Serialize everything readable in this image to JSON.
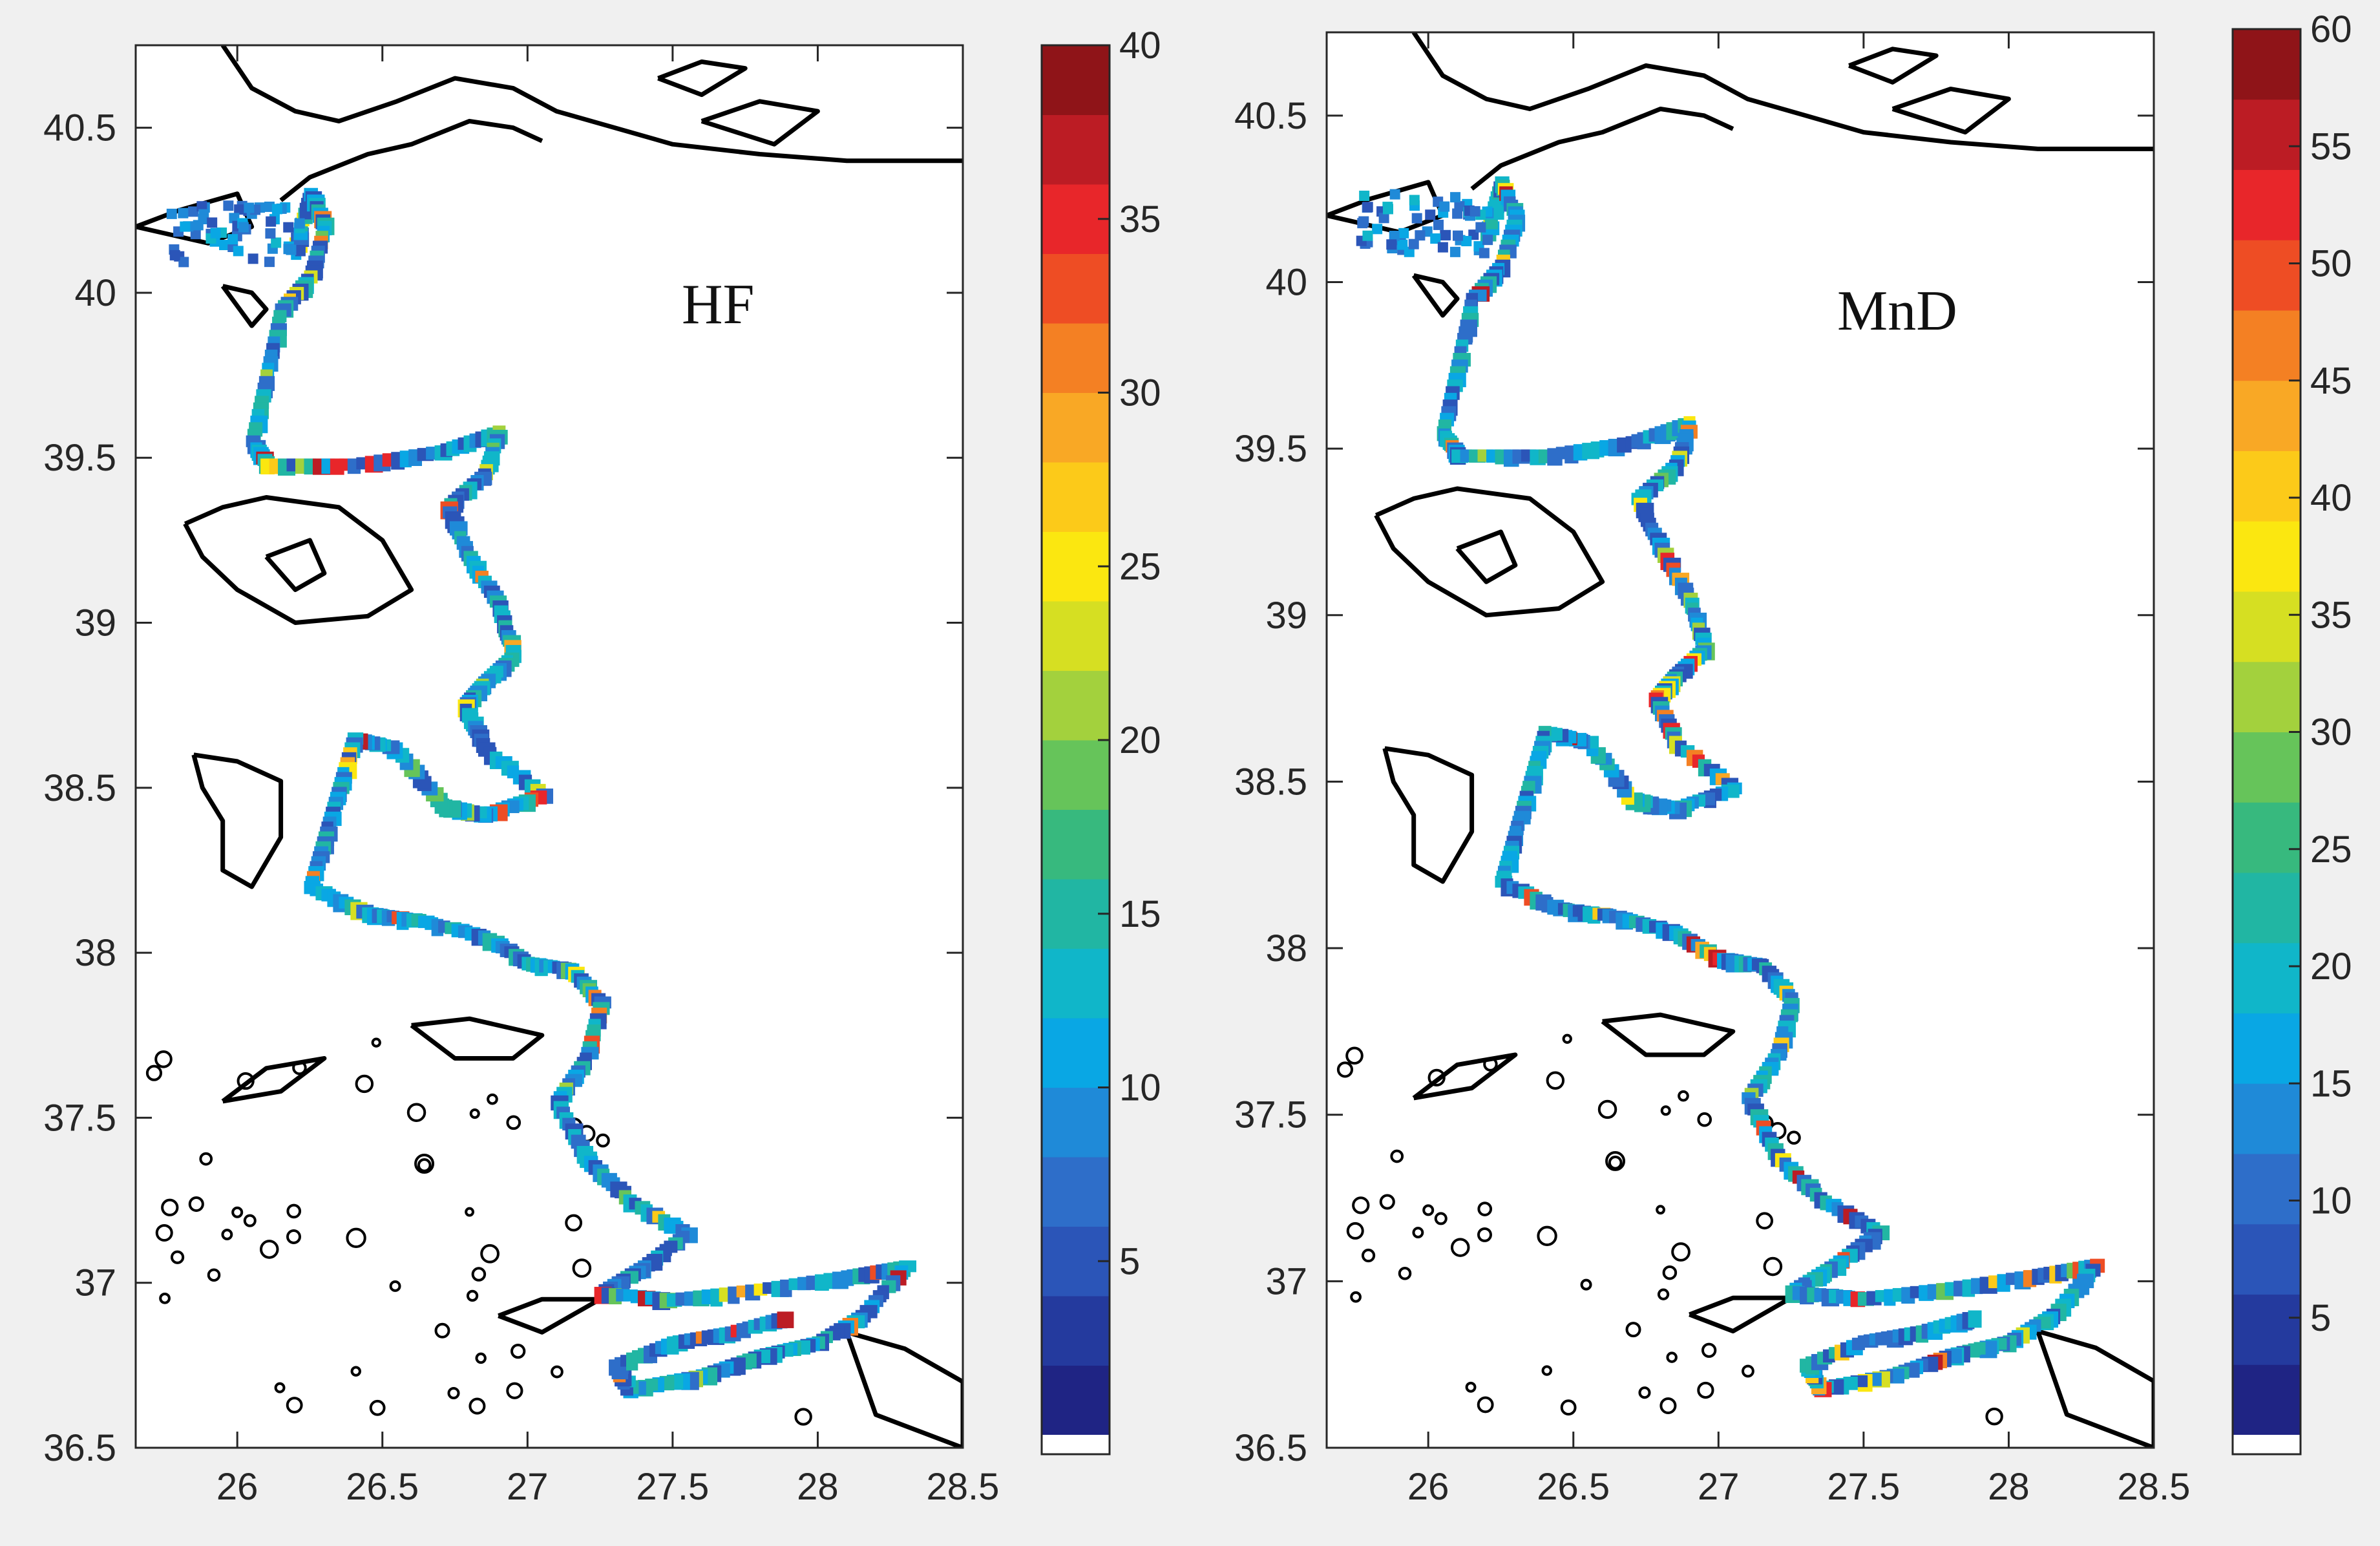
{
  "colormap": [
    "#1f2484",
    "#243a9e",
    "#2b55b8",
    "#2e6ec9",
    "#1f8ad8",
    "#09a7e4",
    "#10b6c9",
    "#21b6a3",
    "#37b97e",
    "#66c45a",
    "#a3d13d",
    "#d6df22",
    "#fbe710",
    "#fcca19",
    "#f9a825",
    "#f48023",
    "#ee4d24",
    "#e8262a",
    "#bc1c24",
    "#8f1418"
  ],
  "coastline_color": "#000000",
  "panels": [
    {
      "id": "hf",
      "label": "HF",
      "xlim": [
        25.65,
        28.5
      ],
      "ylim": [
        36.5,
        40.75
      ],
      "x_ticks": [
        {
          "v": 26,
          "t": "26"
        },
        {
          "v": 26.5,
          "t": "26.5"
        },
        {
          "v": 27,
          "t": "27"
        },
        {
          "v": 27.5,
          "t": "27.5"
        },
        {
          "v": 28,
          "t": "28"
        },
        {
          "v": 28.5,
          "t": "28.5"
        }
      ],
      "y_ticks": [
        {
          "v": 36.5,
          "t": "36.5"
        },
        {
          "v": 37,
          "t": "37"
        },
        {
          "v": 37.5,
          "t": "37.5"
        },
        {
          "v": 38,
          "t": "38"
        },
        {
          "v": 38.5,
          "t": "38.5"
        },
        {
          "v": 39,
          "t": "39"
        },
        {
          "v": 39.5,
          "t": "39.5"
        },
        {
          "v": 40,
          "t": "40"
        },
        {
          "v": 40.5,
          "t": "40.5"
        }
      ],
      "colorbar": {
        "min": 0,
        "max": 40,
        "ticks": [
          {
            "v": 5,
            "t": "5"
          },
          {
            "v": 10,
            "t": "10"
          },
          {
            "v": 15,
            "t": "15"
          },
          {
            "v": 20,
            "t": "20"
          },
          {
            "v": 25,
            "t": "25"
          },
          {
            "v": 30,
            "t": "30"
          },
          {
            "v": 35,
            "t": "35"
          },
          {
            "v": 40,
            "t": "40"
          }
        ]
      }
    },
    {
      "id": "mnd",
      "label": "MnD",
      "xlim": [
        25.65,
        28.5
      ],
      "ylim": [
        36.5,
        40.75
      ],
      "x_ticks": [
        {
          "v": 26,
          "t": "26"
        },
        {
          "v": 26.5,
          "t": "26.5"
        },
        {
          "v": 27,
          "t": "27"
        },
        {
          "v": 27.5,
          "t": "27.5"
        },
        {
          "v": 28,
          "t": "28"
        },
        {
          "v": 28.5,
          "t": "28.5"
        }
      ],
      "y_ticks": [
        {
          "v": 36.5,
          "t": "36.5"
        },
        {
          "v": 37,
          "t": "37"
        },
        {
          "v": 37.5,
          "t": "37.5"
        },
        {
          "v": 38,
          "t": "38"
        },
        {
          "v": 38.5,
          "t": "38.5"
        },
        {
          "v": 39,
          "t": "39"
        },
        {
          "v": 39.5,
          "t": "39.5"
        },
        {
          "v": 40,
          "t": "40"
        },
        {
          "v": 40.5,
          "t": "40.5"
        }
      ],
      "colorbar": {
        "min": 0,
        "max": 60,
        "ticks": [
          {
            "v": 5,
            "t": "5"
          },
          {
            "v": 10,
            "t": "10"
          },
          {
            "v": 15,
            "t": "15"
          },
          {
            "v": 20,
            "t": "20"
          },
          {
            "v": 25,
            "t": "25"
          },
          {
            "v": 30,
            "t": "30"
          },
          {
            "v": 35,
            "t": "35"
          },
          {
            "v": 40,
            "t": "40"
          },
          {
            "v": 45,
            "t": "45"
          },
          {
            "v": 50,
            "t": "50"
          },
          {
            "v": 55,
            "t": "55"
          },
          {
            "v": 60,
            "t": "60"
          }
        ]
      }
    }
  ]
}
